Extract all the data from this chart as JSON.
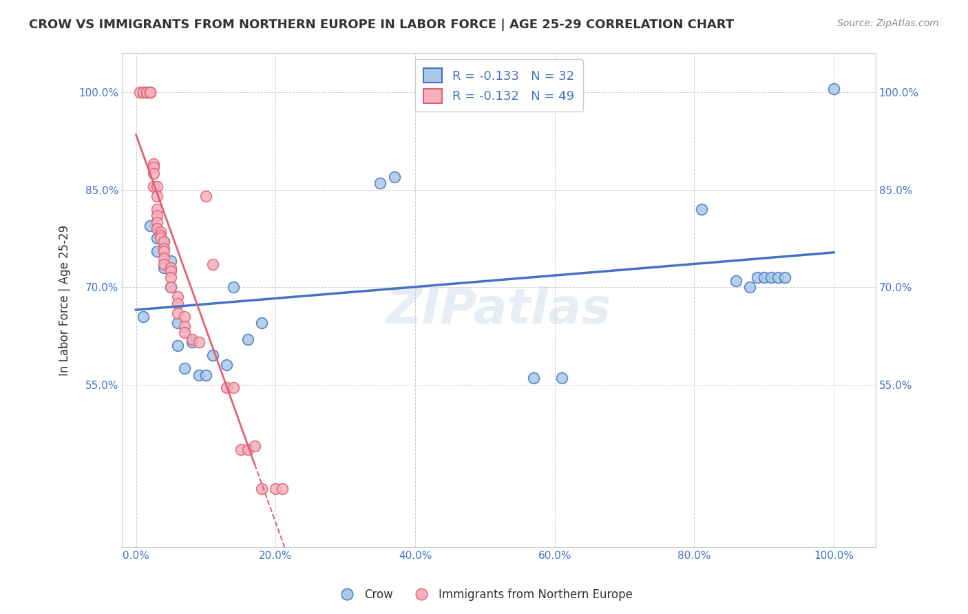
{
  "title": "CROW VS IMMIGRANTS FROM NORTHERN EUROPE IN LABOR FORCE | AGE 25-29 CORRELATION CHART",
  "source": "Source: ZipAtlas.com",
  "ylabel": "In Labor Force | Age 25-29",
  "legend_label_1": "Crow",
  "legend_label_2": "Immigrants from Northern Europe",
  "R1": "-0.133",
  "N1": "32",
  "R2": "-0.132",
  "N2": "49",
  "watermark": "ZIPatlas",
  "color_blue": "#a8c8e8",
  "color_pink": "#f4b0c0",
  "line_blue": "#4472c4",
  "line_pink": "#e06070",
  "scatter_blue_x": [
    0.01,
    0.02,
    0.03,
    0.03,
    0.04,
    0.04,
    0.05,
    0.05,
    0.06,
    0.06,
    0.07,
    0.08,
    0.09,
    0.1,
    0.11,
    0.13,
    0.14,
    0.16,
    0.18,
    0.35,
    0.37,
    0.57,
    0.61,
    0.81,
    0.86,
    0.88,
    0.89,
    0.9,
    0.91,
    0.92,
    0.93,
    1.0
  ],
  "scatter_blue_y": [
    0.655,
    0.795,
    0.755,
    0.775,
    0.73,
    0.77,
    0.7,
    0.74,
    0.61,
    0.645,
    0.575,
    0.615,
    0.565,
    0.565,
    0.595,
    0.58,
    0.7,
    0.62,
    0.645,
    0.86,
    0.87,
    0.56,
    0.56,
    0.82,
    0.71,
    0.7,
    0.715,
    0.715,
    0.715,
    0.715,
    0.715,
    1.005
  ],
  "scatter_pink_x": [
    0.005,
    0.01,
    0.01,
    0.015,
    0.015,
    0.02,
    0.02,
    0.02,
    0.02,
    0.025,
    0.025,
    0.025,
    0.025,
    0.03,
    0.03,
    0.03,
    0.03,
    0.03,
    0.03,
    0.035,
    0.035,
    0.035,
    0.04,
    0.04,
    0.04,
    0.04,
    0.04,
    0.05,
    0.05,
    0.05,
    0.05,
    0.06,
    0.06,
    0.06,
    0.07,
    0.07,
    0.07,
    0.08,
    0.09,
    0.1,
    0.11,
    0.13,
    0.14,
    0.15,
    0.16,
    0.17,
    0.18,
    0.2,
    0.21
  ],
  "scatter_pink_y": [
    1.0,
    1.0,
    1.0,
    1.0,
    1.0,
    1.0,
    1.0,
    1.0,
    1.0,
    0.89,
    0.885,
    0.875,
    0.855,
    0.855,
    0.84,
    0.82,
    0.81,
    0.8,
    0.79,
    0.785,
    0.78,
    0.775,
    0.77,
    0.76,
    0.755,
    0.745,
    0.735,
    0.73,
    0.725,
    0.715,
    0.7,
    0.685,
    0.675,
    0.66,
    0.655,
    0.64,
    0.63,
    0.62,
    0.615,
    0.84,
    0.735,
    0.545,
    0.545,
    0.45,
    0.45,
    0.455,
    0.39,
    0.39,
    0.39
  ],
  "xlim": [
    -0.02,
    1.06
  ],
  "ylim": [
    0.3,
    1.06
  ],
  "xticks": [
    0.0,
    0.2,
    0.4,
    0.6,
    0.8,
    1.0
  ],
  "xticklabels": [
    "0.0%",
    "20.0%",
    "40.0%",
    "60.0%",
    "80.0%",
    "100.0%"
  ],
  "yticks": [
    0.55,
    0.7,
    0.85,
    1.0
  ],
  "yticklabels": [
    "55.0%",
    "70.0%",
    "85.0%",
    "100.0%"
  ],
  "title_color": "#333333",
  "axis_color": "#4472c4",
  "grid_color": "#cccccc",
  "background_color": "#ffffff"
}
